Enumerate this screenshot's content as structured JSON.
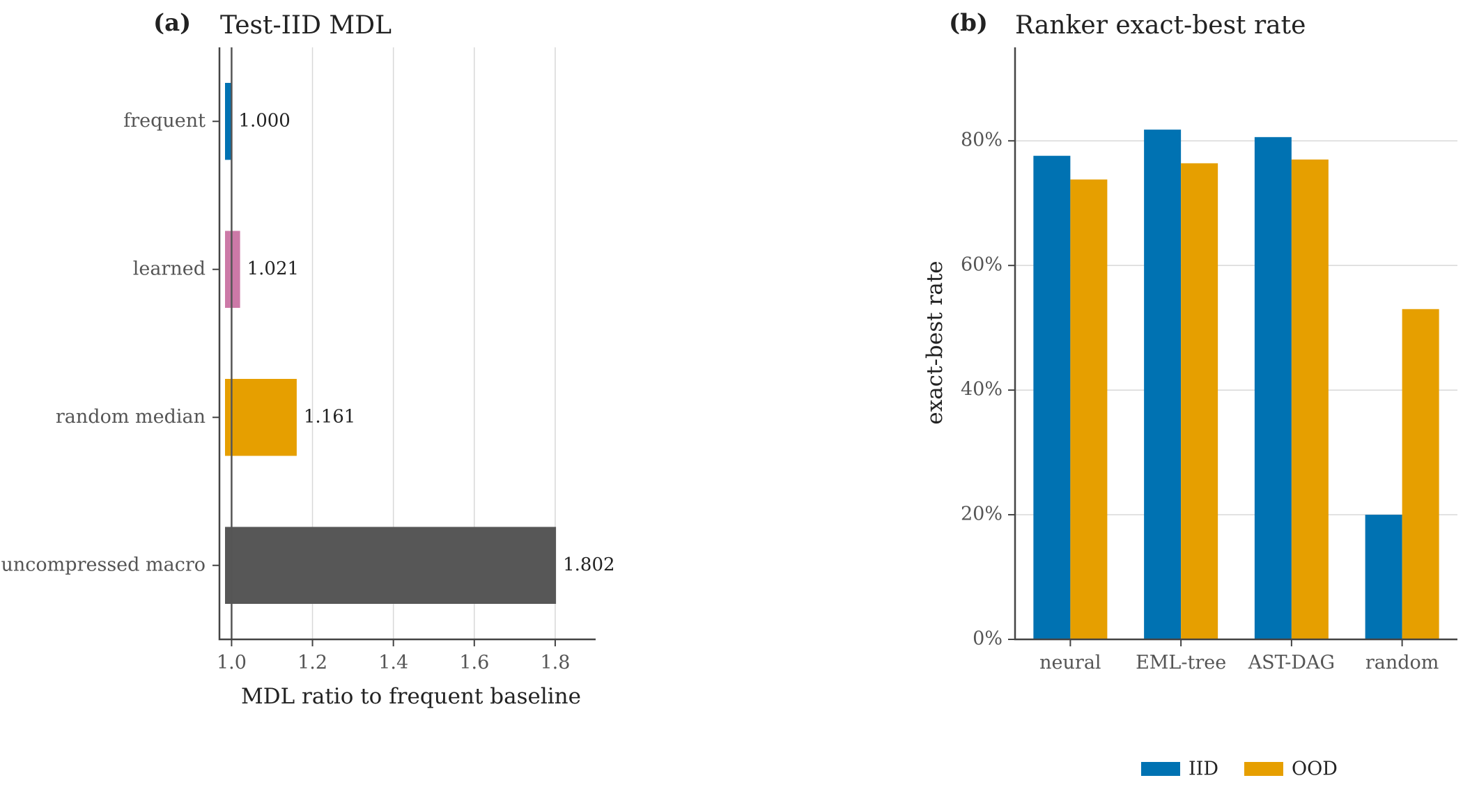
{
  "chart_data": [
    {
      "panel": "(a)",
      "type": "bar",
      "orientation": "horizontal",
      "title": "Test-IID MDL",
      "xlabel": "MDL ratio to frequent baseline",
      "ylabel": "",
      "xlim": [
        0.97,
        1.9
      ],
      "xticks": [
        1.0,
        1.2,
        1.4,
        1.6,
        1.8
      ],
      "xtick_labels": [
        "1.0",
        "1.2",
        "1.4",
        "1.6",
        "1.8"
      ],
      "reference_line": 1.0,
      "grid": "vertical",
      "categories": [
        "frequent",
        "learned",
        "random median",
        "uncompressed macro"
      ],
      "values": [
        1.0,
        1.021,
        1.161,
        1.802
      ],
      "value_labels": [
        "1.000",
        "1.021",
        "1.161",
        "1.802"
      ],
      "colors": [
        "#0072b2",
        "#cc79a7",
        "#e69f00",
        "#575757"
      ]
    },
    {
      "panel": "(b)",
      "type": "bar",
      "orientation": "vertical",
      "title": "Ranker exact-best rate",
      "xlabel": "",
      "ylabel": "exact-best rate",
      "ylim": [
        0,
        0.95
      ],
      "yticks": [
        0,
        0.2,
        0.4,
        0.6,
        0.8
      ],
      "ytick_labels": [
        "0%",
        "20%",
        "40%",
        "60%",
        "80%"
      ],
      "grid": "horizontal",
      "legend": "bottom-center",
      "categories": [
        "neural",
        "EML-tree",
        "AST-DAG",
        "random"
      ],
      "series": [
        {
          "name": "IID",
          "color": "#0072b2",
          "values": [
            0.776,
            0.818,
            0.806,
            0.2
          ]
        },
        {
          "name": "OOD",
          "color": "#e69f00",
          "values": [
            0.738,
            0.764,
            0.77,
            0.53
          ]
        }
      ]
    }
  ]
}
